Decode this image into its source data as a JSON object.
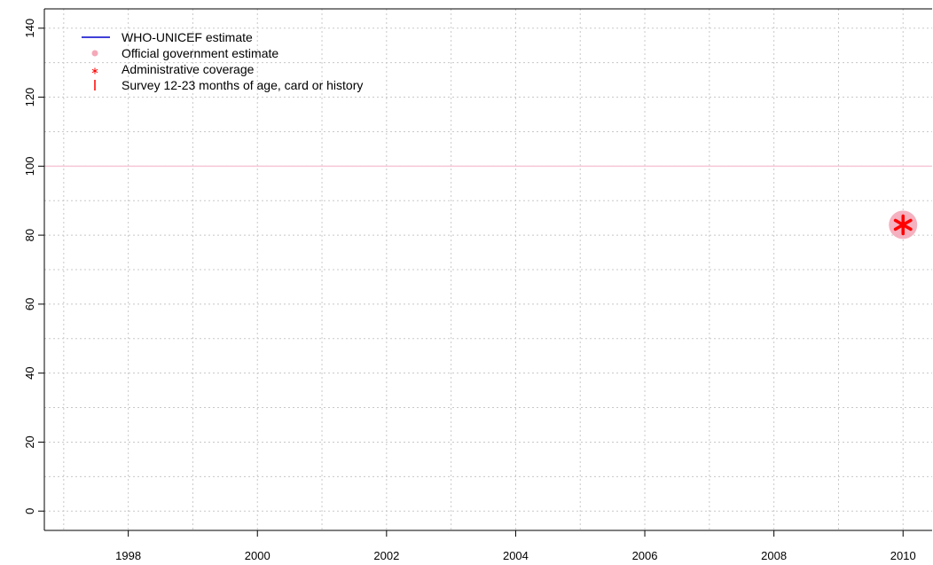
{
  "chart_data": {
    "type": "scatter",
    "title": "",
    "xlabel": "",
    "ylabel": "",
    "xlim": [
      1996.7,
      2010.45
    ],
    "ylim": [
      -5.6,
      145.6
    ],
    "x_ticks": [
      1998,
      2000,
      2002,
      2004,
      2006,
      2008,
      2010
    ],
    "y_ticks": [
      0,
      20,
      40,
      60,
      80,
      100,
      120,
      140
    ],
    "x_grid": [
      1997,
      1998,
      1999,
      2000,
      2001,
      2002,
      2003,
      2004,
      2005,
      2006,
      2007,
      2008,
      2009,
      2010
    ],
    "y_grid": [
      0,
      10,
      20,
      30,
      40,
      50,
      60,
      70,
      80,
      90,
      100,
      110,
      120,
      130,
      140
    ],
    "grid": true,
    "reference_line": {
      "y": 100,
      "color": "#f7c6d6"
    },
    "legend_position": "top-left",
    "series": [
      {
        "name": "WHO-UNICEF estimate",
        "marker": "line",
        "color": "#0000cc",
        "points": []
      },
      {
        "name": "Official government estimate",
        "marker": "circle",
        "color": "#f4a9b8",
        "points": [
          {
            "x": 2010,
            "y": 83
          }
        ]
      },
      {
        "name": "Administrative coverage",
        "marker": "asterisk",
        "color": "#ff0000",
        "points": [
          {
            "x": 2010,
            "y": 83
          }
        ]
      },
      {
        "name": "Survey 12-23 months of age, card or history",
        "marker": "bar",
        "color": "#ff0000",
        "points": []
      }
    ]
  }
}
